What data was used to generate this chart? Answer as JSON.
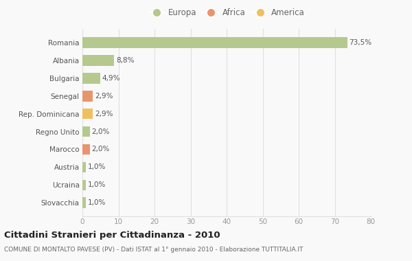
{
  "categories": [
    "Romania",
    "Albania",
    "Bulgaria",
    "Senegal",
    "Rep. Dominicana",
    "Regno Unito",
    "Marocco",
    "Austria",
    "Ucraina",
    "Slovacchia"
  ],
  "values": [
    73.5,
    8.8,
    4.9,
    2.9,
    2.9,
    2.0,
    2.0,
    1.0,
    1.0,
    1.0
  ],
  "labels": [
    "73,5%",
    "8,8%",
    "4,9%",
    "2,9%",
    "2,9%",
    "2,0%",
    "2,0%",
    "1,0%",
    "1,0%",
    "1,0%"
  ],
  "colors": [
    "#b5c98e",
    "#b5c98e",
    "#b5c98e",
    "#e8956d",
    "#f0c060",
    "#b5c98e",
    "#e8956d",
    "#b5c98e",
    "#b5c98e",
    "#b5c98e"
  ],
  "legend_labels": [
    "Europa",
    "Africa",
    "America"
  ],
  "legend_colors": [
    "#b5c98e",
    "#e8956d",
    "#f0c060"
  ],
  "title": "Cittadini Stranieri per Cittadinanza - 2010",
  "subtitle": "COMUNE DI MONTALTO PAVESE (PV) - Dati ISTAT al 1° gennaio 2010 - Elaborazione TUTTITALIA.IT",
  "xlim": [
    0,
    80
  ],
  "xticks": [
    0,
    10,
    20,
    30,
    40,
    50,
    60,
    70,
    80
  ],
  "background_color": "#f9f9f9",
  "grid_color": "#e0e0e0",
  "bar_height": 0.6,
  "label_fontsize": 7.5,
  "ytick_fontsize": 7.5,
  "xtick_fontsize": 7.5
}
